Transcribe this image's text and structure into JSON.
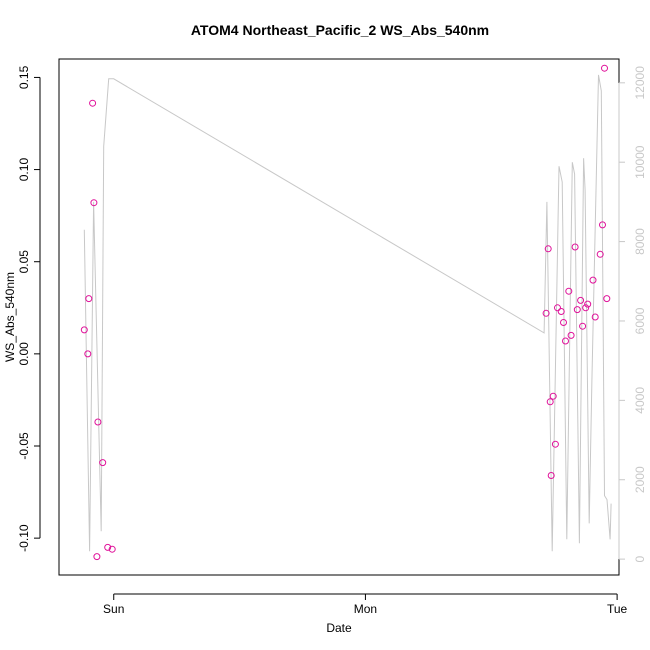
{
  "chart_data": {
    "type": "scatter",
    "title": "ATOM4 Northeast_Pacific_2 WS_Abs_540nm",
    "xlabel": "Date",
    "ylabel": "WS_Abs_540nm",
    "x_ticks": [
      "Sun",
      "Mon",
      "Tue"
    ],
    "x_range_days": [
      -0.2175,
      2.0075
    ],
    "y_left": {
      "range": [
        -0.12,
        0.16
      ],
      "ticks": [
        "-0.10",
        "-0.05",
        "0.00",
        "0.05",
        "0.10",
        "0.15"
      ],
      "tick_values": [
        -0.1,
        -0.05,
        0.0,
        0.05,
        0.1,
        0.15
      ]
    },
    "y_right": {
      "range": [
        -400,
        12600
      ],
      "ticks": [
        "0",
        "2000",
        "4000",
        "6000",
        "8000",
        "10000",
        "12000"
      ],
      "tick_values": [
        0,
        2000,
        4000,
        6000,
        8000,
        10000,
        12000
      ],
      "color": "#c8c8c8"
    },
    "grid": false,
    "series": [
      {
        "type": "scatter",
        "axis": "left",
        "color": "#e0129a",
        "points": [
          [
            -0.117,
            0.013
          ],
          [
            -0.103,
            0.0
          ],
          [
            -0.099,
            0.03
          ],
          [
            -0.084,
            0.136
          ],
          [
            -0.079,
            0.082
          ],
          [
            -0.067,
            -0.11
          ],
          [
            -0.063,
            -0.037
          ],
          [
            -0.044,
            -0.059
          ],
          [
            -0.024,
            -0.105
          ],
          [
            -0.006,
            -0.106
          ],
          [
            1.718,
            0.022
          ],
          [
            1.726,
            0.057
          ],
          [
            1.734,
            -0.026
          ],
          [
            1.738,
            -0.066
          ],
          [
            1.746,
            -0.023
          ],
          [
            1.755,
            -0.049
          ],
          [
            1.763,
            0.025
          ],
          [
            1.778,
            0.023
          ],
          [
            1.787,
            0.017
          ],
          [
            1.795,
            0.007
          ],
          [
            1.808,
            0.034
          ],
          [
            1.817,
            0.01
          ],
          [
            1.833,
            0.058
          ],
          [
            1.842,
            0.024
          ],
          [
            1.855,
            0.029
          ],
          [
            1.863,
            0.015
          ],
          [
            1.875,
            0.025
          ],
          [
            1.883,
            0.027
          ],
          [
            1.904,
            0.04
          ],
          [
            1.913,
            0.02
          ],
          [
            1.933,
            0.054
          ],
          [
            1.942,
            0.07
          ],
          [
            1.95,
            0.155
          ],
          [
            1.959,
            0.03
          ]
        ]
      },
      {
        "type": "line",
        "axis": "right",
        "color": "#c8c8c8",
        "points": [
          [
            -0.117,
            8300
          ],
          [
            -0.096,
            200
          ],
          [
            -0.08,
            9000
          ],
          [
            -0.05,
            700
          ],
          [
            -0.04,
            10400
          ],
          [
            -0.02,
            12100
          ],
          [
            0.0,
            12100
          ],
          [
            1.71,
            5700
          ],
          [
            1.721,
            9000
          ],
          [
            1.742,
            200
          ],
          [
            1.769,
            9900
          ],
          [
            1.782,
            9500
          ],
          [
            1.8,
            500
          ],
          [
            1.822,
            10000
          ],
          [
            1.831,
            9700
          ],
          [
            1.85,
            400
          ],
          [
            1.867,
            10100
          ],
          [
            1.873,
            9300
          ],
          [
            1.889,
            900
          ],
          [
            1.9,
            4500
          ],
          [
            1.926,
            12200
          ],
          [
            1.937,
            11800
          ],
          [
            1.95,
            1600
          ],
          [
            1.96,
            1500
          ],
          [
            1.972,
            500
          ],
          [
            1.976,
            1400
          ]
        ]
      }
    ]
  }
}
